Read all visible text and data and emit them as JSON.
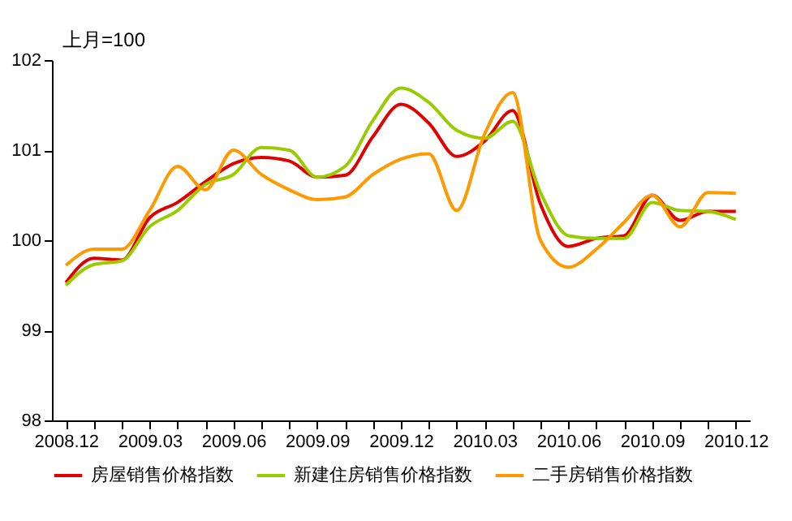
{
  "chart_data": {
    "type": "line",
    "ylabel": "上月=100",
    "categories": [
      "2008.12",
      null,
      null,
      "2009.03",
      null,
      null,
      "2009.06",
      null,
      null,
      "2009.09",
      null,
      null,
      "2009.12",
      null,
      null,
      "2010.03",
      null,
      null,
      "2010.06",
      null,
      null,
      "2010.09",
      null,
      null,
      "2010.12"
    ],
    "series": [
      {
        "name": "房屋销售价格指数",
        "color": "#e00000",
        "values": [
          99.53,
          99.8,
          99.78,
          100.25,
          100.42,
          100.65,
          100.85,
          100.92,
          100.88,
          100.7,
          100.72,
          101.15,
          101.51,
          101.3,
          100.93,
          101.1,
          101.44,
          100.4,
          99.93,
          100.02,
          100.05,
          100.5,
          100.22,
          100.32,
          100.32
        ]
      },
      {
        "name": "新建住房销售价格指数",
        "color": "#99cc00",
        "values": [
          99.5,
          99.73,
          99.77,
          100.15,
          100.33,
          100.62,
          100.73,
          101.03,
          101.0,
          100.7,
          100.82,
          101.33,
          101.69,
          101.53,
          101.22,
          101.13,
          101.32,
          100.53,
          100.05,
          100.02,
          100.02,
          100.42,
          100.33,
          100.32,
          100.23
        ]
      },
      {
        "name": "二手房销售价格指数",
        "color": "#ff9900",
        "values": [
          99.72,
          99.9,
          99.9,
          100.33,
          100.82,
          100.56,
          101.0,
          100.73,
          100.56,
          100.45,
          100.48,
          100.73,
          100.9,
          100.96,
          100.33,
          101.18,
          101.64,
          100.0,
          99.7,
          99.9,
          100.2,
          100.5,
          100.15,
          100.53,
          100.52
        ]
      }
    ],
    "ylim": [
      98,
      102
    ],
    "yticks": [
      98,
      99,
      100,
      101,
      102
    ],
    "grid": false,
    "legend": "bottom",
    "line_style": "solid",
    "marker": "none"
  }
}
